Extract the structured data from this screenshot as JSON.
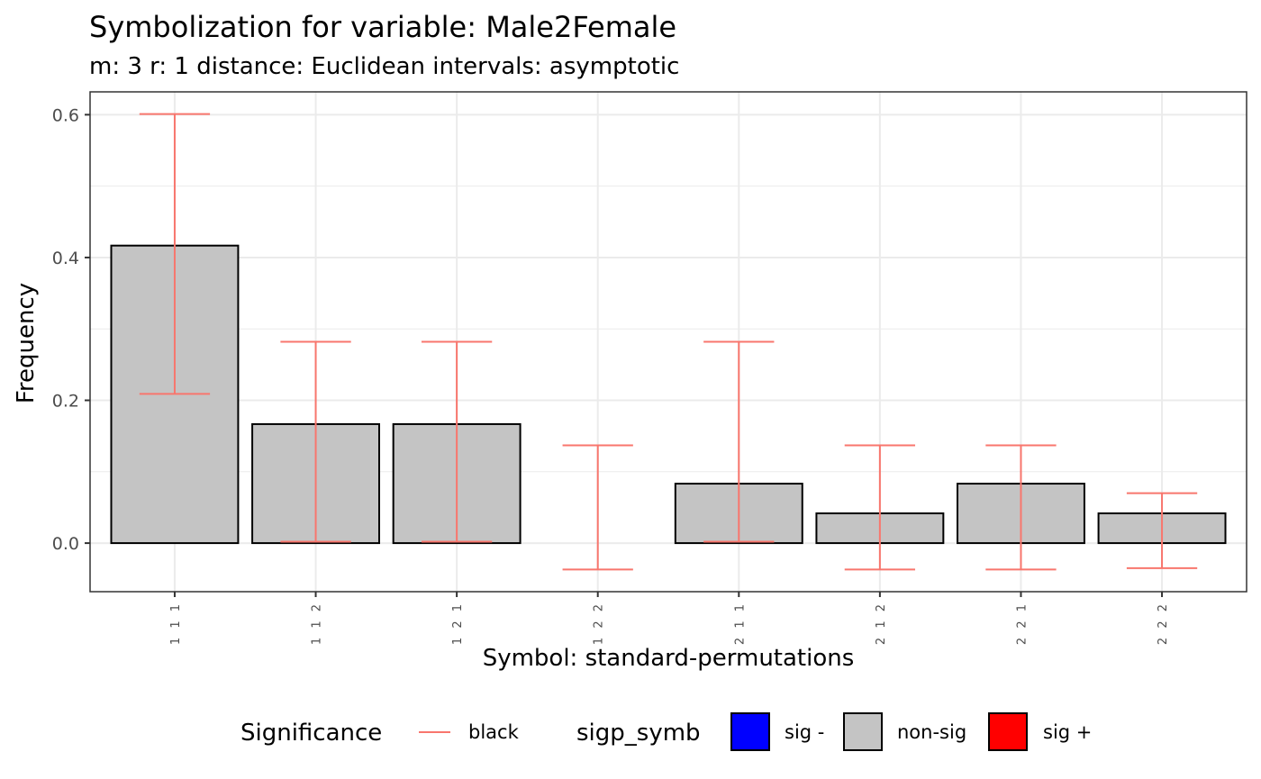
{
  "chart_data": {
    "type": "bar",
    "title": "Symbolization for variable: Male2Female",
    "subtitle": "m: 3  r:  1  distance:  Euclidean  intervals:  asymptotic",
    "xlabel": "Symbol: standard-permutations",
    "ylabel": "Frequency",
    "ylim": [
      -0.068,
      0.632
    ],
    "yticks": [
      0.0,
      0.2,
      0.4,
      0.6
    ],
    "ytick_labels": [
      "0.0",
      "0.2",
      "0.4",
      "0.6"
    ],
    "grid": true,
    "categories": [
      "1 1 1",
      "1 1 2",
      "1 2 1",
      "1 2 2",
      "2 1 1",
      "2 1 2",
      "2 2 1",
      "2 2 2"
    ],
    "values": [
      0.4167,
      0.1667,
      0.1667,
      0.0,
      0.0833,
      0.0417,
      0.0833,
      0.0417
    ],
    "error_lower": [
      0.209,
      0.002,
      0.002,
      -0.037,
      0.002,
      -0.037,
      -0.037,
      -0.035
    ],
    "error_upper": [
      0.601,
      0.282,
      0.282,
      0.137,
      0.282,
      0.137,
      0.137,
      0.07
    ],
    "significance": [
      "non-sig",
      "non-sig",
      "non-sig",
      "non-sig",
      "non-sig",
      "non-sig",
      "non-sig",
      "non-sig"
    ],
    "legend_position": "bottom",
    "legend": {
      "significance_title": "Significance",
      "significance_entries": [
        {
          "label": "black",
          "color": "#F8766D"
        }
      ],
      "sigp_title": "sigp_symb",
      "sigp_entries": [
        {
          "label": "sig -",
          "color": "#0000FF"
        },
        {
          "label": "non-sig",
          "color": "#C4C4C4"
        },
        {
          "label": "sig +",
          "color": "#FF0000"
        }
      ]
    }
  },
  "colors": {
    "bar_fill": "#C4C4C4",
    "bar_outline": "#000000",
    "error_bar": "#F8766D",
    "grid": "#EBEBEB",
    "panel_border": "#333333"
  }
}
